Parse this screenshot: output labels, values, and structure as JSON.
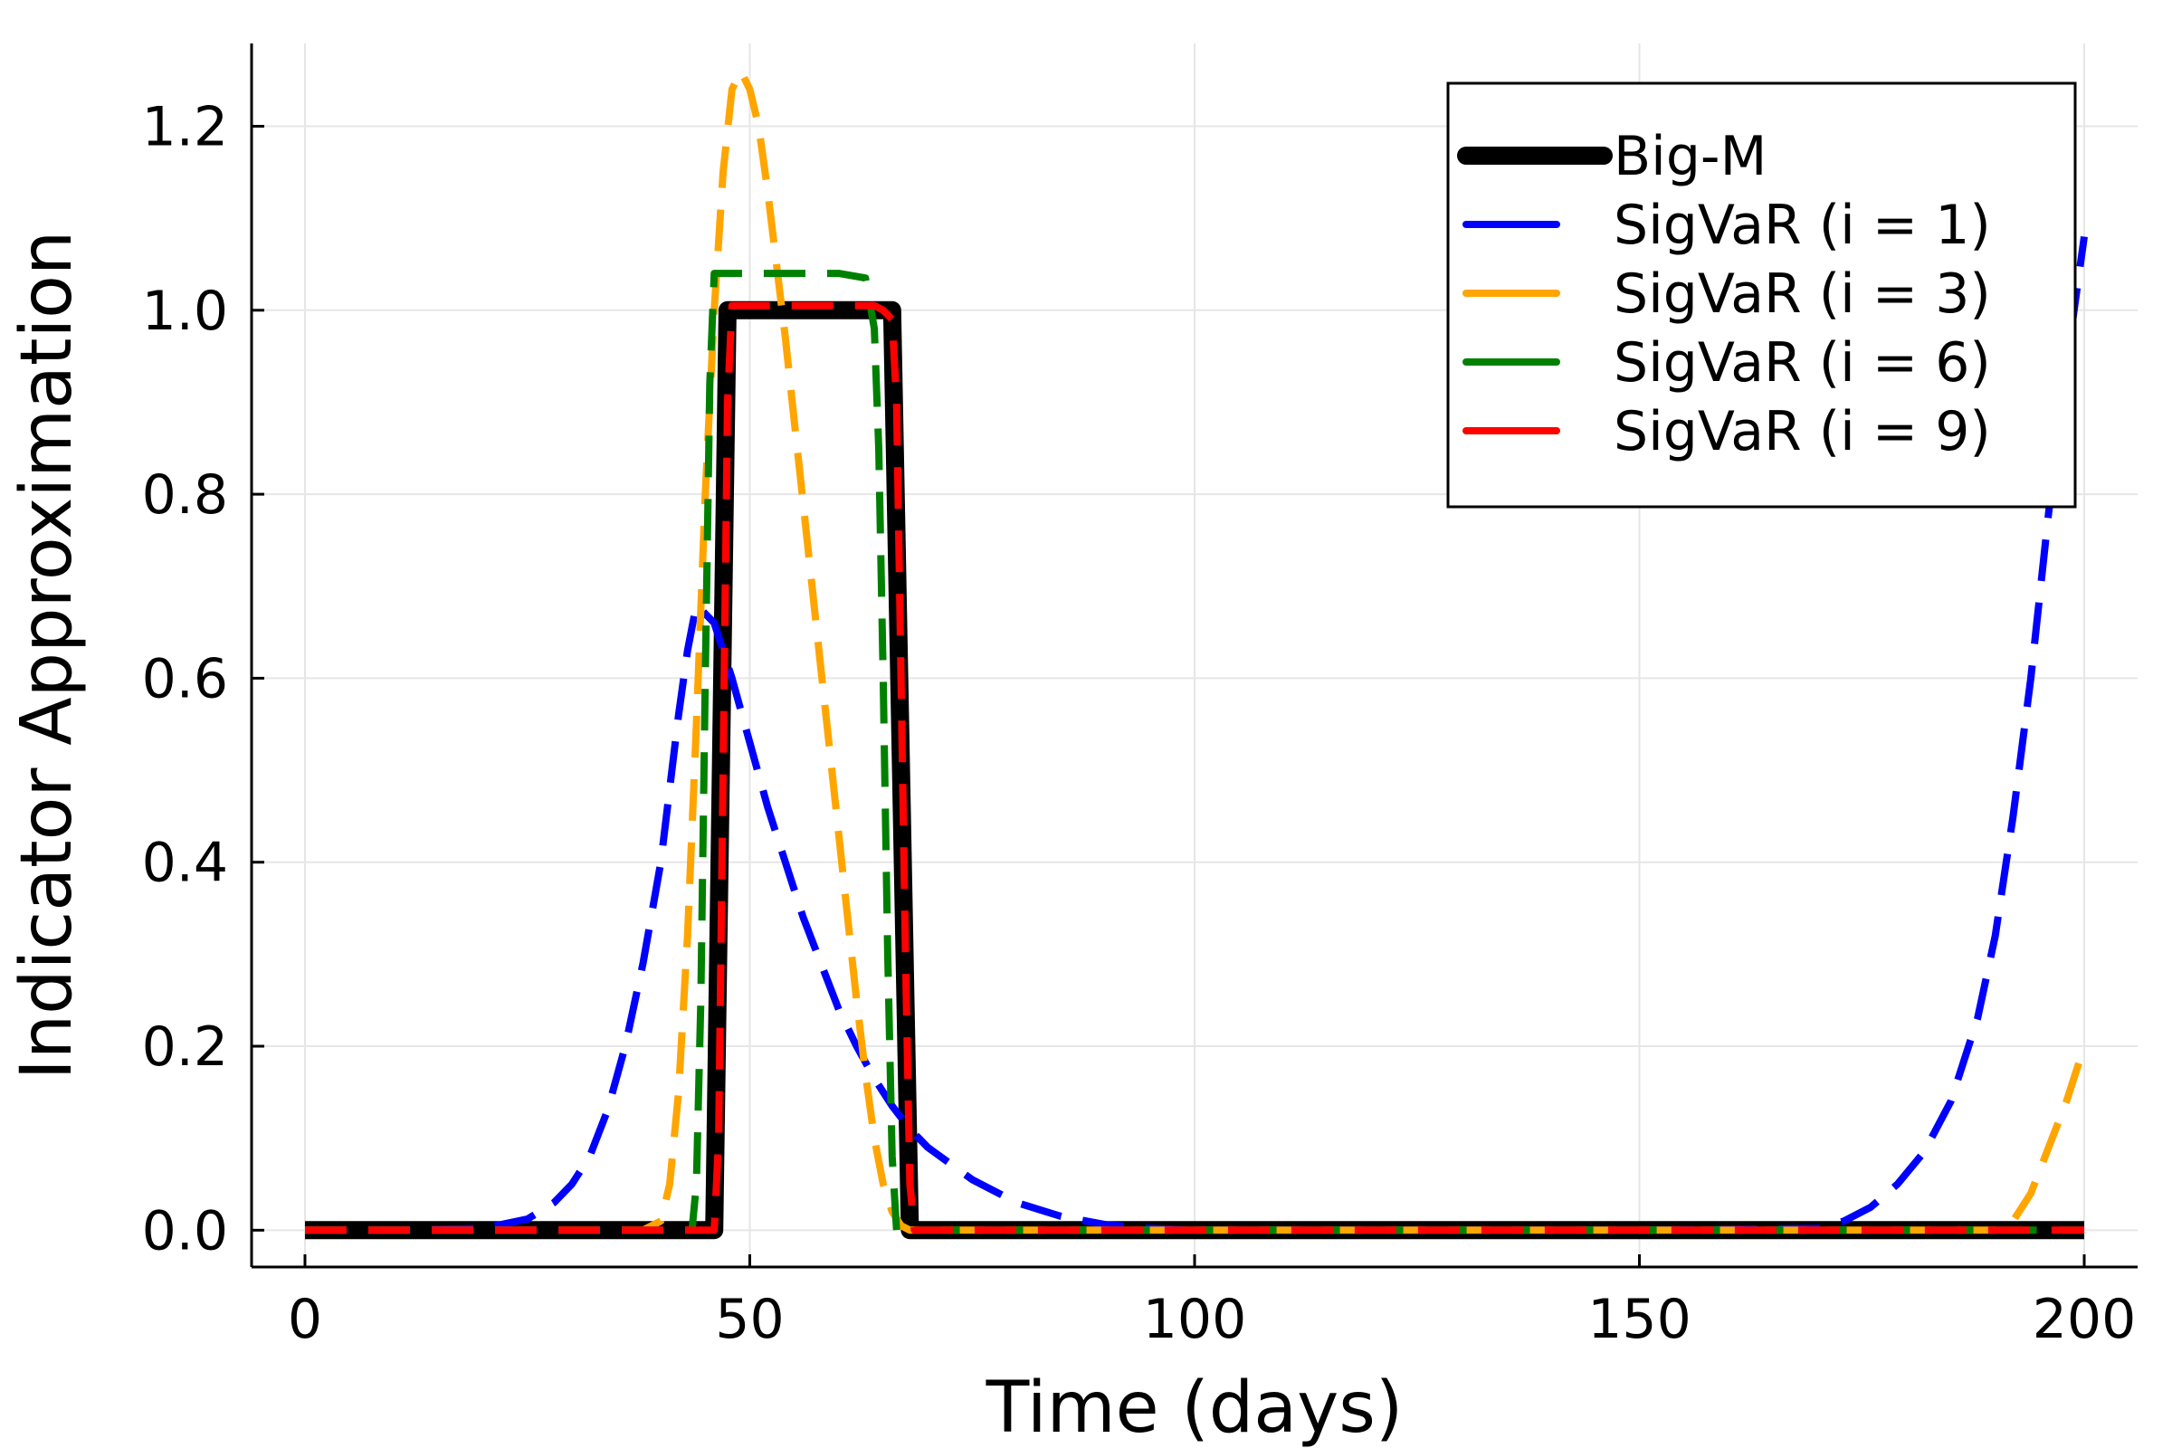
{
  "chart_data": {
    "type": "line",
    "title": "",
    "xlabel": "Time (days)",
    "ylabel": "Indicator Approximation",
    "xlim": [
      -6,
      206
    ],
    "ylim": [
      -0.04,
      1.29
    ],
    "xticks": [
      0,
      50,
      100,
      150,
      200
    ],
    "xtick_labels": [
      "0",
      "50",
      "100",
      "150",
      "200"
    ],
    "yticks": [
      0.0,
      0.2,
      0.4,
      0.6,
      0.8,
      1.0,
      1.2
    ],
    "ytick_labels": [
      "0.0",
      "0.2",
      "0.4",
      "0.6",
      "0.8",
      "1.0",
      "1.2"
    ],
    "grid": true,
    "legend_position": "top-right",
    "series": [
      {
        "name": "Big-M",
        "color": "#000000",
        "style": "solid",
        "x": [
          0,
          46,
          47.5,
          66,
          68,
          200
        ],
        "y": [
          0,
          0,
          1.0,
          1.0,
          0,
          0
        ]
      },
      {
        "name": "SigVaR (i = 1)",
        "color": "#0000ff",
        "style": "dashed",
        "x": [
          0,
          10,
          20,
          25,
          28,
          30,
          32,
          34,
          36,
          38,
          40,
          41,
          42,
          43,
          44,
          46,
          48,
          50,
          52,
          54,
          56,
          58,
          60,
          62,
          64,
          66,
          68,
          70,
          75,
          80,
          85,
          90,
          95,
          100,
          120,
          150,
          170,
          173,
          176,
          179,
          182,
          185,
          188,
          190,
          192,
          194,
          196,
          198,
          200
        ],
        "y": [
          0,
          0,
          0.002,
          0.012,
          0.03,
          0.05,
          0.08,
          0.13,
          0.2,
          0.29,
          0.4,
          0.48,
          0.56,
          0.63,
          0.68,
          0.66,
          0.6,
          0.53,
          0.46,
          0.4,
          0.34,
          0.29,
          0.24,
          0.2,
          0.165,
          0.135,
          0.11,
          0.09,
          0.055,
          0.03,
          0.015,
          0.006,
          0.002,
          0.0,
          0.0,
          0.0,
          0.002,
          0.01,
          0.025,
          0.05,
          0.085,
          0.14,
          0.23,
          0.32,
          0.45,
          0.6,
          0.78,
          0.94,
          1.08
        ]
      },
      {
        "name": "SigVaR (i = 3)",
        "color": "#ffa500",
        "style": "dashed",
        "x": [
          0,
          38,
          40,
          41,
          42,
          43,
          44,
          45,
          46,
          47,
          48,
          49,
          50,
          51,
          52,
          53,
          54,
          55,
          56,
          57,
          58,
          59,
          60,
          61,
          62,
          63,
          64,
          65,
          66,
          67,
          68,
          70,
          190,
          192,
          194,
          196,
          198,
          200
        ],
        "y": [
          0,
          0,
          0.01,
          0.05,
          0.15,
          0.32,
          0.55,
          0.8,
          1.0,
          1.15,
          1.24,
          1.26,
          1.24,
          1.2,
          1.13,
          1.05,
          0.97,
          0.88,
          0.79,
          0.7,
          0.61,
          0.52,
          0.43,
          0.34,
          0.25,
          0.17,
          0.1,
          0.05,
          0.02,
          0.005,
          0,
          0,
          0,
          0.01,
          0.04,
          0.09,
          0.14,
          0.2
        ]
      },
      {
        "name": "SigVaR (i = 6)",
        "color": "#008000",
        "style": "dashed",
        "x": [
          0,
          43.5,
          44,
          44.5,
          45,
          45.5,
          46,
          50,
          55,
          60,
          63,
          64,
          64.5,
          65,
          65.5,
          66,
          66.5,
          200
        ],
        "y": [
          0,
          0,
          0.05,
          0.25,
          0.6,
          0.92,
          1.04,
          1.04,
          1.04,
          1.04,
          1.035,
          0.98,
          0.85,
          0.6,
          0.3,
          0.08,
          0,
          0
        ]
      },
      {
        "name": "SigVaR (i = 9)",
        "color": "#ff0000",
        "style": "dashed",
        "x": [
          0,
          46,
          46.5,
          47,
          47.5,
          48,
          55,
          60,
          64,
          65,
          66,
          66.5,
          67,
          67.5,
          68,
          68.5,
          200
        ],
        "y": [
          0,
          0,
          0.1,
          0.5,
          0.9,
          1.005,
          1.005,
          1.005,
          1.005,
          1.0,
          0.99,
          0.9,
          0.6,
          0.3,
          0.05,
          0,
          0
        ]
      }
    ]
  }
}
